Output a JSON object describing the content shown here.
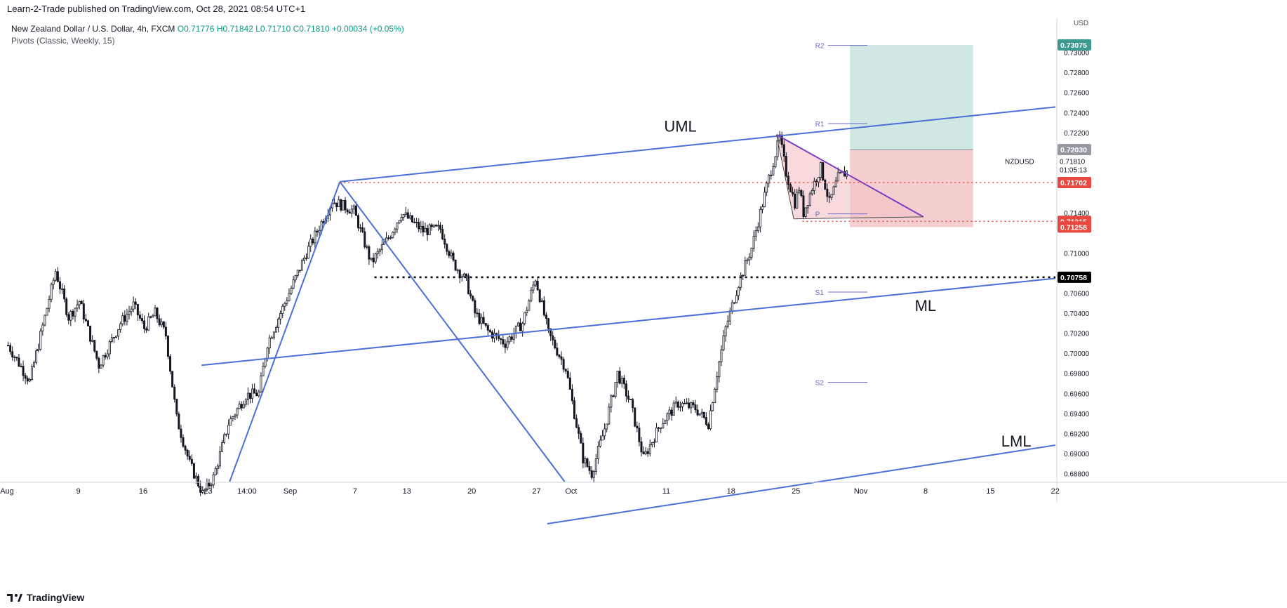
{
  "header": {
    "title": "Learn-2-Trade published on TradingView.com, Oct 28, 2021 08:54 UTC+1"
  },
  "legend": {
    "symbol": "New Zealand Dollar / U.S. Dollar, 4h, FXCM",
    "open": "O0.71776",
    "high": "H0.71842",
    "low": "L0.71710",
    "close": "C0.71810",
    "change": "+0.00034 (+0.05%)",
    "indicator": "Pivots (Classic, Weekly, 15)"
  },
  "footer": {
    "brand": "TradingView"
  },
  "chart_data": {
    "type": "candlestick",
    "symbol": "NZDUSD",
    "currency": "USD",
    "y_range": [
      0.6872,
      0.7334
    ],
    "y_ticks": [
      "0.73000",
      "0.72800",
      "0.72600",
      "0.72400",
      "0.72200",
      "0.71400",
      "0.71000",
      "0.70600",
      "0.70400",
      "0.70200",
      "0.70000",
      "0.69800",
      "0.69600",
      "0.69400",
      "0.69200",
      "0.69000",
      "0.68800"
    ],
    "x_labels": [
      {
        "label": "Aug",
        "bar": 0
      },
      {
        "label": "9",
        "bar": 33
      },
      {
        "label": "16",
        "bar": 63
      },
      {
        "label": "23",
        "bar": 93
      },
      {
        "label": "14:00",
        "bar": 111
      },
      {
        "label": "Sep",
        "bar": 131
      },
      {
        "label": "7",
        "bar": 161
      },
      {
        "label": "13",
        "bar": 185
      },
      {
        "label": "20",
        "bar": 215
      },
      {
        "label": "27",
        "bar": 245
      },
      {
        "label": "Oct",
        "bar": 261
      },
      {
        "label": "11",
        "bar": 305
      },
      {
        "label": "18",
        "bar": 335
      },
      {
        "label": "25",
        "bar": 365
      },
      {
        "label": "Nov",
        "bar": 395
      },
      {
        "label": "8",
        "bar": 425
      },
      {
        "label": "15",
        "bar": 455
      },
      {
        "label": "22",
        "bar": 485
      }
    ],
    "last_bar": 388,
    "anchors": [
      [
        0,
        0.7008
      ],
      [
        10,
        0.6972
      ],
      [
        22,
        0.7082
      ],
      [
        28,
        0.7036
      ],
      [
        33,
        0.7052
      ],
      [
        42,
        0.6988
      ],
      [
        52,
        0.703
      ],
      [
        58,
        0.7048
      ],
      [
        63,
        0.7025
      ],
      [
        68,
        0.704
      ],
      [
        73,
        0.7018
      ],
      [
        78,
        0.6935
      ],
      [
        84,
        0.689
      ],
      [
        90,
        0.686
      ],
      [
        95,
        0.6876
      ],
      [
        102,
        0.693
      ],
      [
        110,
        0.6958
      ],
      [
        116,
        0.696
      ],
      [
        120,
        0.701
      ],
      [
        128,
        0.705
      ],
      [
        138,
        0.71
      ],
      [
        150,
        0.7152
      ],
      [
        160,
        0.7142
      ],
      [
        168,
        0.709
      ],
      [
        176,
        0.7115
      ],
      [
        182,
        0.714
      ],
      [
        192,
        0.7122
      ],
      [
        200,
        0.7124
      ],
      [
        206,
        0.709
      ],
      [
        212,
        0.7072
      ],
      [
        216,
        0.704
      ],
      [
        222,
        0.7022
      ],
      [
        230,
        0.701
      ],
      [
        238,
        0.703
      ],
      [
        244,
        0.7075
      ],
      [
        250,
        0.702
      ],
      [
        258,
        0.6985
      ],
      [
        262,
        0.694
      ],
      [
        266,
        0.6895
      ],
      [
        270,
        0.688
      ],
      [
        276,
        0.6925
      ],
      [
        282,
        0.698
      ],
      [
        288,
        0.695
      ],
      [
        294,
        0.6895
      ],
      [
        302,
        0.693
      ],
      [
        310,
        0.695
      ],
      [
        318,
        0.6945
      ],
      [
        324,
        0.693
      ],
      [
        328,
        0.698
      ],
      [
        332,
        0.7025
      ],
      [
        338,
        0.707
      ],
      [
        344,
        0.7105
      ],
      [
        348,
        0.714
      ],
      [
        352,
        0.7175
      ],
      [
        357,
        0.7215
      ],
      [
        360,
        0.718
      ],
      [
        364,
        0.715
      ],
      [
        366,
        0.7165
      ],
      [
        368,
        0.714
      ],
      [
        372,
        0.7165
      ],
      [
        376,
        0.7185
      ],
      [
        380,
        0.715
      ],
      [
        384,
        0.7175
      ],
      [
        388,
        0.7181
      ]
    ],
    "drawings": [
      {
        "name": "UML",
        "type": "trendline",
        "p1": [
          154,
          0.7171
        ],
        "p2": [
          505,
          0.725
        ],
        "extend": true
      },
      {
        "name": "ML",
        "type": "trendline",
        "p1": [
          90,
          0.6988
        ],
        "p2": [
          505,
          0.7079
        ],
        "extend": true
      },
      {
        "name": "LML",
        "type": "trendline",
        "p1": [
          250,
          0.683
        ],
        "p2": [
          505,
          0.6915
        ],
        "extend": true
      },
      {
        "name": "pitchfork-handle-up",
        "type": "line",
        "p1": [
          103,
          0.6872
        ],
        "p2": [
          154,
          0.7171
        ]
      },
      {
        "name": "pitchfork-handle-down",
        "type": "line",
        "p1": [
          154,
          0.7171
        ],
        "p2": [
          258,
          0.6872
        ]
      },
      {
        "name": "triangle-upper",
        "type": "line",
        "p1": [
          356,
          0.7218
        ],
        "p2": [
          424,
          0.7136
        ]
      },
      {
        "name": "triangle-lower",
        "type": "line",
        "p1": [
          364,
          0.7134
        ],
        "p2": [
          424,
          0.7136
        ]
      },
      {
        "name": "triangle-left",
        "type": "line",
        "p1": [
          356,
          0.7218
        ],
        "p2": [
          364,
          0.7134
        ]
      },
      {
        "name": "resistance-dotted",
        "type": "hline",
        "price": 0.71702,
        "from": 154
      },
      {
        "name": "support-dotted",
        "type": "hline",
        "price": 0.71315,
        "from": 368
      },
      {
        "name": "key-level-dotted",
        "type": "hline",
        "price": 0.70758,
        "from": 170
      }
    ],
    "pivots": [
      {
        "label": "R2",
        "price": 0.7307,
        "from": 370,
        "to": 390
      },
      {
        "label": "R1",
        "price": 0.7229,
        "from": 370,
        "to": 390
      },
      {
        "label": "P",
        "price": 0.7139,
        "from": 370,
        "to": 390
      },
      {
        "label": "S1",
        "price": 0.7061,
        "from": 370,
        "to": 390
      },
      {
        "label": "S2",
        "price": 0.6971,
        "from": 370,
        "to": 390
      }
    ],
    "position": {
      "entry": 0.7203,
      "target": 0.73075,
      "stop": 0.71258,
      "from": 390,
      "to": 447
    },
    "annotations": [
      {
        "text": "UML",
        "bar": 304,
        "price": 0.7221
      },
      {
        "text": "ML",
        "bar": 420,
        "price": 0.7042
      },
      {
        "text": "LML",
        "bar": 460,
        "price": 0.6907
      }
    ],
    "price_badges": [
      {
        "text": "0.73075",
        "price": 0.73075,
        "color": "#3b9a8f",
        "text_color": "#ffffff"
      },
      {
        "text": "0.72030",
        "price": 0.7203,
        "color": "#9598a1",
        "text_color": "#ffffff"
      },
      {
        "text": "0.71702",
        "price": 0.71702,
        "color": "#e8473f",
        "text_color": "#ffffff"
      },
      {
        "text": "0.71315",
        "price": 0.71315,
        "color": "#e8473f",
        "text_color": "#ffffff"
      },
      {
        "text": "0.71258",
        "price": 0.71258,
        "color": "#e8473f",
        "text_color": "#ffffff"
      },
      {
        "text": "0.70758",
        "price": 0.70758,
        "color": "#000000",
        "text_color": "#ffffff"
      }
    ],
    "last_price_label": {
      "symbol": "NZDUSD",
      "price": "0.71810",
      "countdown": "01:05:13"
    },
    "colors": {
      "candle": "#131722",
      "trend": "#4a6fd8",
      "triangle_edge": "#7b3fc4",
      "triangle_fill": "#f3c2c6",
      "target_zone": "#cfe8e4",
      "stop_zone": "#f5cfcf",
      "dotted_red": "#e8473f",
      "pivot": "#6b68c8"
    }
  }
}
